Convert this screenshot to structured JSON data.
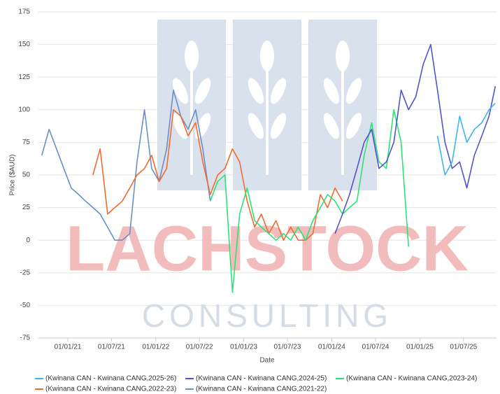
{
  "chart_data": {
    "type": "line",
    "watermark": {
      "line1": "LACHSTOCK",
      "line2": "CONSULTING"
    },
    "ylabel": "Price ($AUD)",
    "xlabel": "Date",
    "ylim": [
      -75,
      175
    ],
    "yticks": [
      -75,
      -50,
      -25,
      0,
      25,
      50,
      75,
      100,
      125,
      150,
      175
    ],
    "xlim": [
      "2020-09-01",
      "2025-11-15"
    ],
    "xticks": [
      {
        "value": "2021-01-01",
        "label": "01/01/21"
      },
      {
        "value": "2021-07-01",
        "label": "01/07/21"
      },
      {
        "value": "2022-01-01",
        "label": "01/01/22"
      },
      {
        "value": "2022-07-01",
        "label": "01/07/22"
      },
      {
        "value": "2023-01-01",
        "label": "01/01/23"
      },
      {
        "value": "2023-07-01",
        "label": "01/07/23"
      },
      {
        "value": "2024-01-01",
        "label": "01/01/24"
      },
      {
        "value": "2024-07-01",
        "label": "01/07/24"
      },
      {
        "value": "2025-01-01",
        "label": "01/01/25"
      },
      {
        "value": "2025-07-01",
        "label": "01/07/25"
      }
    ],
    "grid": true,
    "legend": "bottom",
    "series": [
      {
        "name": "(Kwinana CAN - Kwinana CANG,2021-22)",
        "color": "#6b8fc9",
        "x": [
          "2020-09-15",
          "2020-10-15",
          "2020-11-15",
          "2020-12-15",
          "2021-01-15",
          "2021-02-15",
          "2021-03-15",
          "2021-04-15",
          "2021-05-15",
          "2021-06-15",
          "2021-07-15",
          "2021-08-15",
          "2021-09-15",
          "2021-10-15",
          "2021-11-15",
          "2021-12-15",
          "2022-01-15",
          "2022-02-15",
          "2022-03-15",
          "2022-04-15",
          "2022-05-15",
          "2022-06-15",
          "2022-07-15",
          "2022-08-15"
        ],
        "values": [
          65,
          85,
          70,
          55,
          40,
          35,
          30,
          25,
          20,
          10,
          0,
          0,
          5,
          60,
          100,
          55,
          45,
          70,
          115,
          95,
          85,
          100,
          70,
          30
        ]
      },
      {
        "name": "(Kwinana CAN - Kwinana CANG,2022-23)",
        "color": "#f26b30",
        "x": [
          "2021-04-15",
          "2021-05-15",
          "2021-06-15",
          "2021-07-15",
          "2021-08-15",
          "2021-09-15",
          "2021-10-15",
          "2021-11-15",
          "2021-12-15",
          "2022-01-15",
          "2022-02-15",
          "2022-03-15",
          "2022-04-15",
          "2022-05-15",
          "2022-06-15",
          "2022-07-15",
          "2022-08-15",
          "2022-09-15",
          "2022-10-15",
          "2022-11-15",
          "2022-12-15",
          "2023-01-15",
          "2023-02-15",
          "2023-03-15",
          "2023-04-15",
          "2023-05-15",
          "2023-06-15",
          "2023-07-15",
          "2023-08-15",
          "2023-09-15",
          "2023-10-15",
          "2023-11-15",
          "2023-12-15",
          "2024-01-15",
          "2024-02-15"
        ],
        "values": [
          50,
          70,
          20,
          25,
          30,
          40,
          50,
          55,
          65,
          45,
          55,
          100,
          95,
          80,
          90,
          60,
          35,
          50,
          55,
          70,
          60,
          30,
          10,
          20,
          5,
          15,
          0,
          10,
          0,
          0,
          5,
          35,
          25,
          40,
          30
        ]
      },
      {
        "name": "(Kwinana CAN - Kwinana CANG,2023-24)",
        "color": "#2ee27a",
        "x": [
          "2022-08-15",
          "2022-09-15",
          "2022-10-15",
          "2022-11-15",
          "2022-12-15",
          "2023-01-15",
          "2023-02-15",
          "2023-03-15",
          "2023-04-15",
          "2023-05-15",
          "2023-06-15",
          "2023-07-15",
          "2023-08-15",
          "2023-09-15",
          "2023-10-15",
          "2023-11-15",
          "2023-12-15",
          "2024-01-15",
          "2024-02-15",
          "2024-03-15",
          "2024-04-15",
          "2024-05-15",
          "2024-06-15",
          "2024-07-15",
          "2024-08-15",
          "2024-09-15",
          "2024-10-15",
          "2024-11-15"
        ],
        "values": [
          30,
          45,
          50,
          -40,
          20,
          40,
          15,
          10,
          5,
          0,
          5,
          0,
          10,
          0,
          15,
          25,
          35,
          30,
          20,
          25,
          30,
          65,
          90,
          60,
          55,
          100,
          75,
          -5
        ]
      },
      {
        "name": "(Kwinana CAN - Kwinana CANG,2024-25)",
        "color": "#5454c8",
        "x": [
          "2024-01-15",
          "2024-02-15",
          "2024-03-15",
          "2024-04-15",
          "2024-05-15",
          "2024-06-15",
          "2024-07-15",
          "2024-08-15",
          "2024-09-15",
          "2024-10-15",
          "2024-11-15",
          "2024-12-15",
          "2025-01-15",
          "2025-02-15",
          "2025-03-15",
          "2025-04-15",
          "2025-05-15",
          "2025-06-15",
          "2025-07-15",
          "2025-08-15",
          "2025-09-15",
          "2025-10-15",
          "2025-11-10"
        ],
        "values": [
          5,
          20,
          35,
          55,
          75,
          85,
          55,
          60,
          75,
          115,
          100,
          110,
          135,
          150,
          115,
          75,
          55,
          60,
          40,
          65,
          80,
          95,
          118
        ]
      },
      {
        "name": "(Kwinana CAN - Kwinana CANG,2025-26)",
        "color": "#3fb4ef",
        "x": [
          "2025-03-15",
          "2025-04-15",
          "2025-05-15",
          "2025-06-15",
          "2025-07-15",
          "2025-08-15",
          "2025-09-15",
          "2025-10-15",
          "2025-11-10"
        ],
        "values": [
          80,
          50,
          60,
          95,
          75,
          85,
          90,
          100,
          105
        ]
      }
    ],
    "legend_order": [
      4,
      3,
      2,
      1,
      0
    ]
  }
}
